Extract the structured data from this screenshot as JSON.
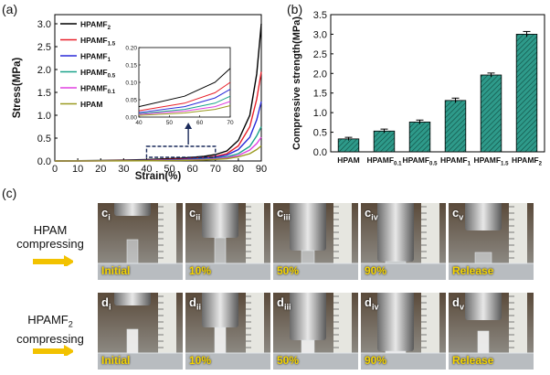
{
  "labels": {
    "a": "(a)",
    "b": "(b)",
    "c": "(c)"
  },
  "chart_data": [
    {
      "type": "line",
      "title": "",
      "xlabel": "Strain(%)",
      "ylabel": "Stress(MPa)",
      "xlim": [
        0,
        90
      ],
      "ylim": [
        0,
        3.2
      ],
      "xticks": [
        "0",
        "10",
        "20",
        "30",
        "40",
        "50",
        "60",
        "70",
        "80",
        "90"
      ],
      "yticks": [
        "0.0",
        "0.5",
        "1.0",
        "1.5",
        "2.0",
        "2.5",
        "3.0"
      ],
      "legend_position": "top-left",
      "series": [
        {
          "name": "HPAMF",
          "sub": "2",
          "color": "#000000",
          "x": [
            0,
            20,
            40,
            55,
            65,
            70,
            75,
            80,
            85,
            88,
            90
          ],
          "y": [
            0,
            0.01,
            0.03,
            0.06,
            0.1,
            0.14,
            0.22,
            0.45,
            1.0,
            1.9,
            3.0
          ]
        },
        {
          "name": "HPAMF",
          "sub": "1.5",
          "color": "#e8202a",
          "x": [
            0,
            20,
            40,
            55,
            65,
            70,
            75,
            80,
            85,
            88,
            90
          ],
          "y": [
            0,
            0.005,
            0.018,
            0.04,
            0.07,
            0.1,
            0.16,
            0.33,
            0.75,
            1.35,
            1.95
          ]
        },
        {
          "name": "HPAMF",
          "sub": "1",
          "color": "#2a2ad8",
          "x": [
            0,
            20,
            40,
            55,
            65,
            70,
            75,
            80,
            85,
            88,
            90
          ],
          "y": [
            0,
            0.004,
            0.013,
            0.03,
            0.055,
            0.08,
            0.13,
            0.25,
            0.52,
            0.9,
            1.3
          ]
        },
        {
          "name": "HPAMF",
          "sub": "0.5",
          "color": "#1aa38a",
          "x": [
            0,
            20,
            40,
            55,
            65,
            70,
            75,
            80,
            85,
            88,
            90
          ],
          "y": [
            0,
            0.003,
            0.01,
            0.022,
            0.04,
            0.06,
            0.09,
            0.16,
            0.32,
            0.55,
            0.75
          ]
        },
        {
          "name": "HPAMF",
          "sub": "0.1",
          "color": "#e040e0",
          "x": [
            0,
            20,
            40,
            55,
            65,
            70,
            75,
            80,
            85,
            88,
            90
          ],
          "y": [
            0,
            0.002,
            0.008,
            0.017,
            0.03,
            0.045,
            0.07,
            0.12,
            0.24,
            0.38,
            0.52
          ]
        },
        {
          "name": "HPAM",
          "sub": "",
          "color": "#9a9a20",
          "x": [
            0,
            20,
            40,
            55,
            65,
            70,
            75,
            80,
            85,
            88,
            90
          ],
          "y": [
            0,
            0.001,
            0.005,
            0.012,
            0.022,
            0.033,
            0.05,
            0.09,
            0.16,
            0.25,
            0.33
          ]
        }
      ],
      "inset": {
        "xlim": [
          40,
          70
        ],
        "ylim": [
          0,
          0.2
        ],
        "xticks": [
          "40",
          "50",
          "60",
          "70"
        ],
        "yticks": [
          "0.00",
          "0.05",
          "0.10",
          "0.15",
          "0.20"
        ],
        "zoom_region": {
          "x": [
            40,
            70
          ],
          "y": [
            0,
            0.2
          ]
        }
      }
    },
    {
      "type": "bar",
      "title": "",
      "xlabel": "",
      "ylabel": "Compressive strength(MPa)",
      "ylim": [
        0,
        3.5
      ],
      "yticks": [
        "0.0",
        "0.5",
        "1.0",
        "1.5",
        "2.0",
        "2.5",
        "3.0",
        "3.5"
      ],
      "categories": [
        {
          "name": "HPAM",
          "sub": ""
        },
        {
          "name": "HPAMF",
          "sub": "0.1"
        },
        {
          "name": "HPAMF",
          "sub": "0.5"
        },
        {
          "name": "HPAMF",
          "sub": "1"
        },
        {
          "name": "HPAMF",
          "sub": "1.5"
        },
        {
          "name": "HPAMF",
          "sub": "2"
        }
      ],
      "values": [
        0.33,
        0.53,
        0.76,
        1.31,
        1.96,
        3.0
      ],
      "errors": [
        0.04,
        0.05,
        0.05,
        0.06,
        0.05,
        0.07
      ],
      "color": "#2e9a8a"
    }
  ],
  "photos": {
    "rows": [
      {
        "label_line1": "HPAM",
        "label_sub": "",
        "label_line2": "compressing",
        "prefix": "c",
        "tags": [
          "i",
          "ii",
          "iii",
          "iv",
          "v"
        ],
        "stages": [
          "Initial",
          "10%",
          "50%",
          "90%",
          "Release"
        ]
      },
      {
        "label_line1": "HPAMF",
        "label_sub": "2",
        "label_line2": "compressing",
        "prefix": "d",
        "tags": [
          "i",
          "ii",
          "iii",
          "iv",
          "v"
        ],
        "stages": [
          "Initial",
          "10%",
          "50%",
          "90%",
          "Release"
        ]
      }
    ]
  },
  "colors": {
    "arrow": "#f2c200",
    "bar": "#2e9a8a"
  }
}
